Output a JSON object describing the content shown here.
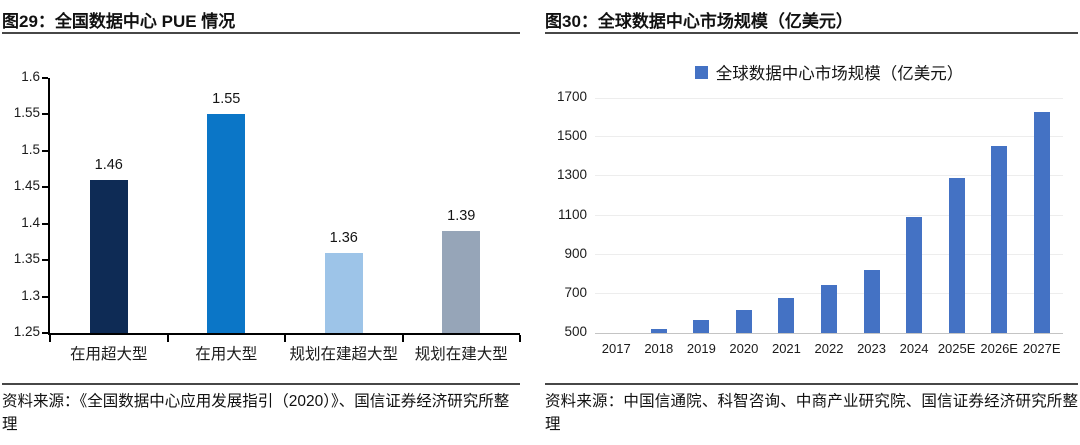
{
  "left_panel": {
    "title": "图29：全国数据中心 PUE 情况",
    "source": "资料来源：《全国数据中心应用发展指引（2020）》、国信证券经济研究所整理"
  },
  "right_panel": {
    "title": "图30：全球数据中心市场规模（亿美元）",
    "legend_label": "全球数据中心市场规模（亿美元）",
    "source": "资料来源：中国信通院、科智咨询、中商产业研究院、国信证券经济研究所整理"
  },
  "colors": {
    "title_rule": "#474747",
    "axis_line": "#000000",
    "gridline": "#ededed",
    "baseline": "#c4c4c4",
    "text": "#141414"
  },
  "chart_data": [
    {
      "type": "bar",
      "title": "图29：全国数据中心 PUE 情况",
      "categories": [
        "在用超大型",
        "在用大型",
        "规划在建超大型",
        "规划在建大型"
      ],
      "values": [
        1.46,
        1.55,
        1.36,
        1.39
      ],
      "data_labels": [
        "1.46",
        "1.55",
        "1.36",
        "1.39"
      ],
      "bar_colors": [
        "#0e2b55",
        "#0b76c7",
        "#9dc4e8",
        "#96a5b8"
      ],
      "xlabel": "",
      "ylabel": "",
      "ylim": [
        1.25,
        1.6
      ],
      "yticks": [
        "1.25",
        "1.3",
        "1.35",
        "1.4",
        "1.45",
        "1.5",
        "1.55",
        "1.6"
      ],
      "grid": false,
      "legend_position": "none"
    },
    {
      "type": "bar",
      "title": "图30：全球数据中心市场规模（亿美元）",
      "legend": [
        "全球数据中心市场规模（亿美元）"
      ],
      "categories": [
        "2017",
        "2018",
        "2019",
        "2020",
        "2021",
        "2022",
        "2023",
        "2024",
        "2025E",
        "2026E",
        "2027E"
      ],
      "values": [
        500,
        520,
        565,
        620,
        680,
        745,
        820,
        1090,
        1290,
        1455,
        1630
      ],
      "bar_color": "#4472c4",
      "xlabel": "",
      "ylabel": "",
      "ylim": [
        500,
        1700
      ],
      "yticks": [
        "500",
        "700",
        "900",
        "1100",
        "1300",
        "1500",
        "1700"
      ],
      "grid": true,
      "legend_position": "top"
    }
  ]
}
